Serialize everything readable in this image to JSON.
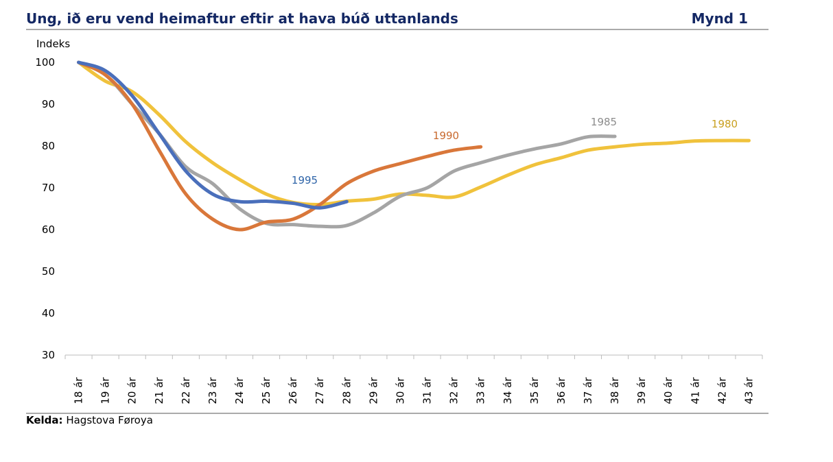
{
  "chart_data": {
    "type": "line",
    "title": "Ung, ið eru vend heimaftur eftir at hava búð uttanlands",
    "figure_label": "Mynd 1",
    "y_label": "Indeks",
    "source_label": "Kelda:",
    "source": "Hagstova Føroya",
    "categories": [
      "18 ár",
      "19 ár",
      "20 ár",
      "21 ár",
      "22 ár",
      "23 ár",
      "24 ár",
      "25 ár",
      "26 ár",
      "27 ár",
      "28 ár",
      "29 ár",
      "30 ár",
      "31 ár",
      "32 ár",
      "33 ár",
      "34 ár",
      "35 ár",
      "36 ár",
      "37 ár",
      "38 ár",
      "39 ár",
      "40 ár",
      "41 ár",
      "42 ár",
      "43 ár"
    ],
    "ylim": [
      30,
      100
    ],
    "yticks": [
      30,
      40,
      50,
      60,
      70,
      80,
      90,
      100
    ],
    "series": [
      {
        "name": "1980",
        "color": "#f0c23c",
        "values": [
          100,
          95.5,
          93,
          87.5,
          81,
          76,
          72,
          68.5,
          66.5,
          66,
          66.8,
          67.3,
          68.5,
          68.2,
          67.8,
          70.2,
          73,
          75.5,
          77.2,
          79,
          79.8,
          80.4,
          80.7,
          81.2,
          81.3,
          81.3
        ]
      },
      {
        "name": "1985",
        "color": "#a5a5a5",
        "values": [
          100,
          97,
          90,
          83,
          75,
          71,
          65,
          61.5,
          61.2,
          60.8,
          61,
          64,
          68,
          70,
          74,
          76,
          77.8,
          79.3,
          80.5,
          82.2,
          82.3,
          null,
          null,
          null,
          null,
          null
        ]
      },
      {
        "name": "1990",
        "color": "#d9773a",
        "values": [
          100,
          97,
          90,
          79,
          68.5,
          62.5,
          60,
          61.8,
          62.5,
          66,
          71,
          74,
          75.8,
          77.5,
          79,
          79.8,
          null,
          null,
          null,
          null,
          null,
          null,
          null,
          null,
          null,
          null
        ]
      },
      {
        "name": "1995",
        "color": "#4a6fbb",
        "values": [
          100,
          98,
          92,
          83,
          74,
          68.5,
          66.7,
          66.8,
          66.3,
          65.2,
          66.7,
          null,
          null,
          null,
          null,
          null,
          null,
          null,
          null,
          null,
          null,
          null,
          null,
          null,
          null,
          null
        ]
      }
    ]
  }
}
